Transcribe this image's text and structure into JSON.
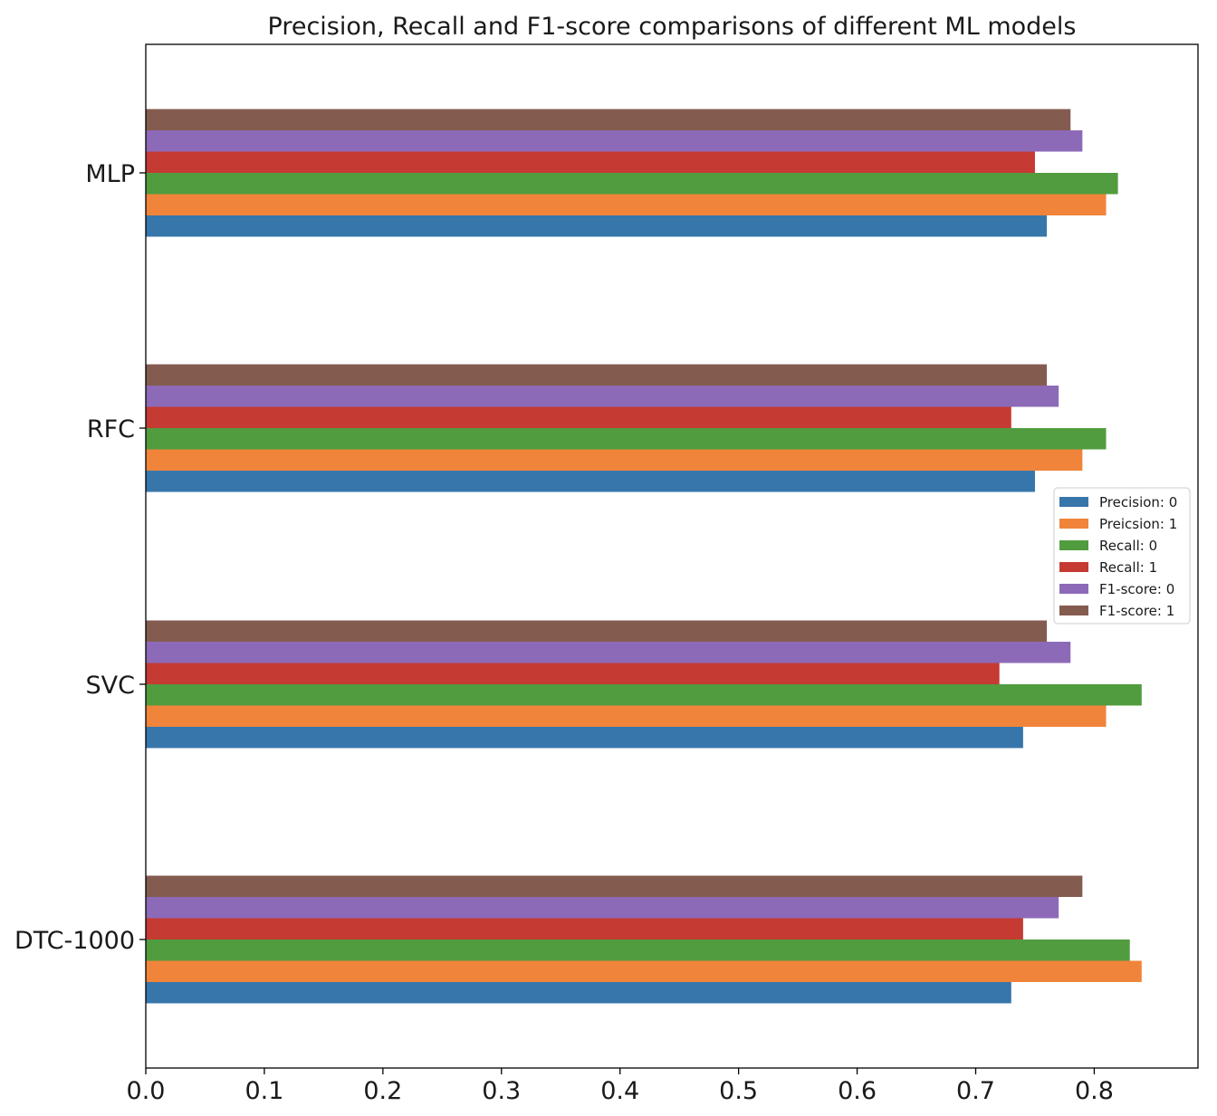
{
  "chart_data": {
    "type": "bar",
    "orientation": "horizontal",
    "title": "Precision, Recall and F1-score comparisons of different ML models",
    "xlabel": "",
    "ylabel": "",
    "xlim": [
      0,
      0.8875
    ],
    "xticks": [
      "0.0",
      "0.1",
      "0.2",
      "0.3",
      "0.4",
      "0.5",
      "0.6",
      "0.7",
      "0.8"
    ],
    "grid": false,
    "legend_position": "center-right",
    "categories": [
      "DTC-1000",
      "SVC",
      "RFC",
      "MLP"
    ],
    "series": [
      {
        "name": "Precision: 0",
        "color": "#3776ab",
        "values": [
          0.73,
          0.74,
          0.75,
          0.76
        ]
      },
      {
        "name": "Preicsion: 1",
        "color": "#f0843a",
        "values": [
          0.84,
          0.81,
          0.79,
          0.81
        ]
      },
      {
        "name": "Recall: 0",
        "color": "#509c3f",
        "values": [
          0.83,
          0.84,
          0.81,
          0.82
        ]
      },
      {
        "name": "Recall: 1",
        "color": "#c53a32",
        "values": [
          0.74,
          0.72,
          0.73,
          0.75
        ]
      },
      {
        "name": "F1-score: 0",
        "color": "#8d6ab8",
        "values": [
          0.77,
          0.78,
          0.77,
          0.79
        ]
      },
      {
        "name": "F1-score: 1",
        "color": "#845b4f",
        "values": [
          0.79,
          0.76,
          0.76,
          0.78
        ]
      }
    ]
  }
}
